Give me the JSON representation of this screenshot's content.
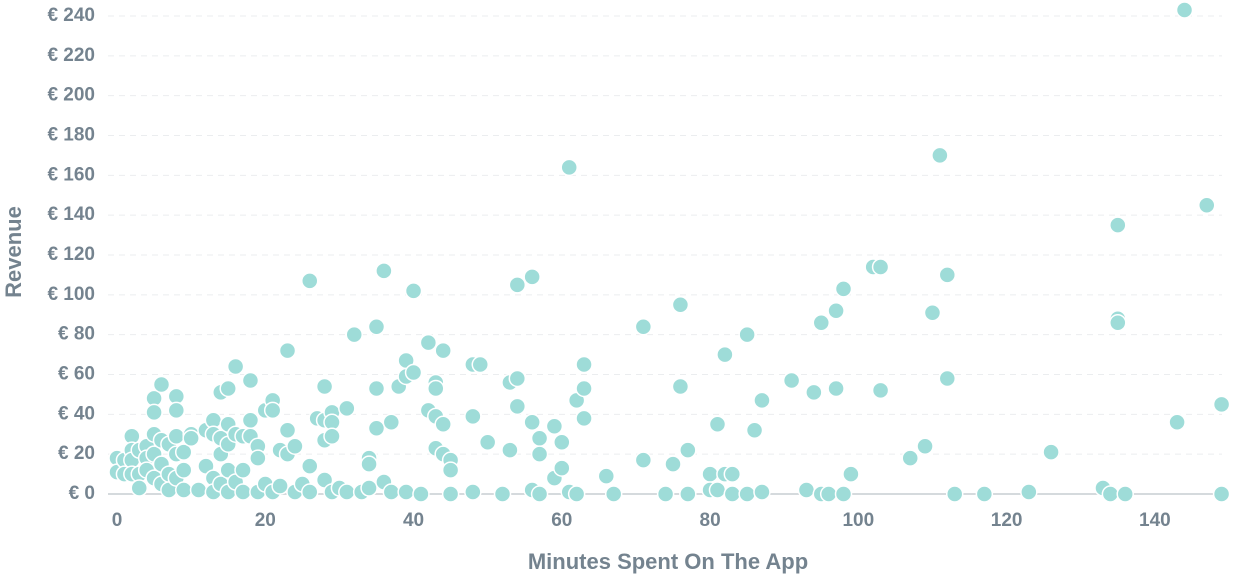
{
  "chart_data": {
    "type": "scatter",
    "x_label": "Minutes Spent On The App",
    "y_label": "Revenue",
    "color": "#9edcd8",
    "grid": true,
    "xlim": [
      -1,
      150
    ],
    "ylim": [
      0,
      240
    ],
    "xticks": [
      0,
      20,
      40,
      60,
      80,
      100,
      120,
      140
    ],
    "yticks": [
      {
        "value": 0,
        "label": "€ 0"
      },
      {
        "value": 20,
        "label": "€ 20"
      },
      {
        "value": 40,
        "label": "€ 40"
      },
      {
        "value": 60,
        "label": "€ 60"
      },
      {
        "value": 80,
        "label": "€ 80"
      },
      {
        "value": 100,
        "label": "€ 100"
      },
      {
        "value": 120,
        "label": "€ 120"
      },
      {
        "value": 140,
        "label": "€ 140"
      },
      {
        "value": 160,
        "label": "€ 160"
      },
      {
        "value": 180,
        "label": "€ 180"
      },
      {
        "value": 200,
        "label": "€ 200"
      },
      {
        "value": 220,
        "label": "€ 220"
      },
      {
        "value": 240,
        "label": "€ 240"
      }
    ],
    "x": [
      0,
      0,
      1,
      1,
      2,
      2,
      2,
      2,
      3,
      3,
      3,
      4,
      4,
      4,
      5,
      5,
      5,
      5,
      5,
      6,
      6,
      6,
      6,
      7,
      7,
      7,
      8,
      8,
      8,
      8,
      8,
      9,
      9,
      9,
      10,
      10,
      11,
      12,
      12,
      13,
      13,
      13,
      13,
      14,
      14,
      14,
      14,
      15,
      15,
      15,
      15,
      15,
      16,
      16,
      16,
      17,
      17,
      17,
      18,
      18,
      18,
      19,
      19,
      19,
      20,
      20,
      21,
      21,
      21,
      22,
      22,
      23,
      23,
      23,
      24,
      24,
      25,
      26,
      26,
      26,
      27,
      28,
      28,
      28,
      28,
      29,
      29,
      29,
      29,
      30,
      31,
      31,
      32,
      33,
      34,
      34,
      34,
      35,
      35,
      35,
      36,
      36,
      37,
      37,
      38,
      39,
      39,
      39,
      40,
      40,
      41,
      42,
      42,
      43,
      43,
      43,
      43,
      44,
      44,
      44,
      45,
      45,
      45,
      48,
      48,
      48,
      49,
      50,
      52,
      53,
      53,
      54,
      54,
      54,
      56,
      56,
      56,
      57,
      57,
      57,
      59,
      59,
      60,
      60,
      61,
      61,
      62,
      62,
      63,
      63,
      63,
      66,
      67,
      71,
      71,
      74,
      75,
      76,
      76,
      77,
      77,
      80,
      80,
      81,
      81,
      82,
      82,
      83,
      83,
      85,
      85,
      86,
      87,
      87,
      91,
      93,
      94,
      95,
      95,
      96,
      97,
      97,
      98,
      98,
      99,
      102,
      103,
      103,
      107,
      109,
      110,
      111,
      112,
      112,
      113,
      117,
      123,
      126,
      133,
      134,
      135,
      135,
      135,
      136,
      143,
      144,
      147,
      149,
      149
    ],
    "values": [
      18,
      11,
      17,
      10,
      29,
      22,
      17,
      10,
      22,
      10,
      3,
      24,
      18,
      12,
      48,
      41,
      30,
      20,
      8,
      55,
      27,
      15,
      5,
      25,
      10,
      2,
      49,
      42,
      29,
      20,
      8,
      21,
      12,
      2,
      30,
      28,
      2,
      32,
      14,
      37,
      30,
      8,
      1,
      51,
      28,
      20,
      5,
      53,
      35,
      25,
      12,
      1,
      64,
      30,
      6,
      29,
      12,
      1,
      57,
      37,
      29,
      24,
      18,
      1,
      42,
      5,
      47,
      42,
      1,
      22,
      4,
      72,
      32,
      20,
      24,
      1,
      5,
      107,
      14,
      1,
      38,
      54,
      37,
      27,
      7,
      41,
      36,
      29,
      1,
      3,
      43,
      1,
      80,
      1,
      18,
      15,
      3,
      84,
      53,
      33,
      112,
      6,
      36,
      1,
      54,
      67,
      59,
      1,
      102,
      61,
      0,
      76,
      42,
      56,
      53,
      39,
      23,
      72,
      35,
      20,
      17,
      12,
      0,
      65,
      39,
      1,
      65,
      26,
      0,
      56,
      22,
      105,
      58,
      44,
      109,
      36,
      2,
      28,
      20,
      0,
      34,
      8,
      26,
      13,
      164,
      1,
      47,
      0,
      65,
      53,
      38,
      9,
      0,
      84,
      17,
      0,
      15,
      95,
      54,
      22,
      0,
      10,
      2,
      35,
      2,
      70,
      10,
      10,
      0,
      80,
      0,
      32,
      47,
      1,
      57,
      2,
      51,
      86,
      0,
      0,
      92,
      53,
      103,
      0,
      10,
      114,
      114,
      52,
      18,
      24,
      91,
      170,
      110,
      58,
      0,
      0,
      1,
      21,
      3,
      0,
      135,
      88,
      86,
      0,
      36,
      243,
      145,
      45,
      0
    ]
  }
}
